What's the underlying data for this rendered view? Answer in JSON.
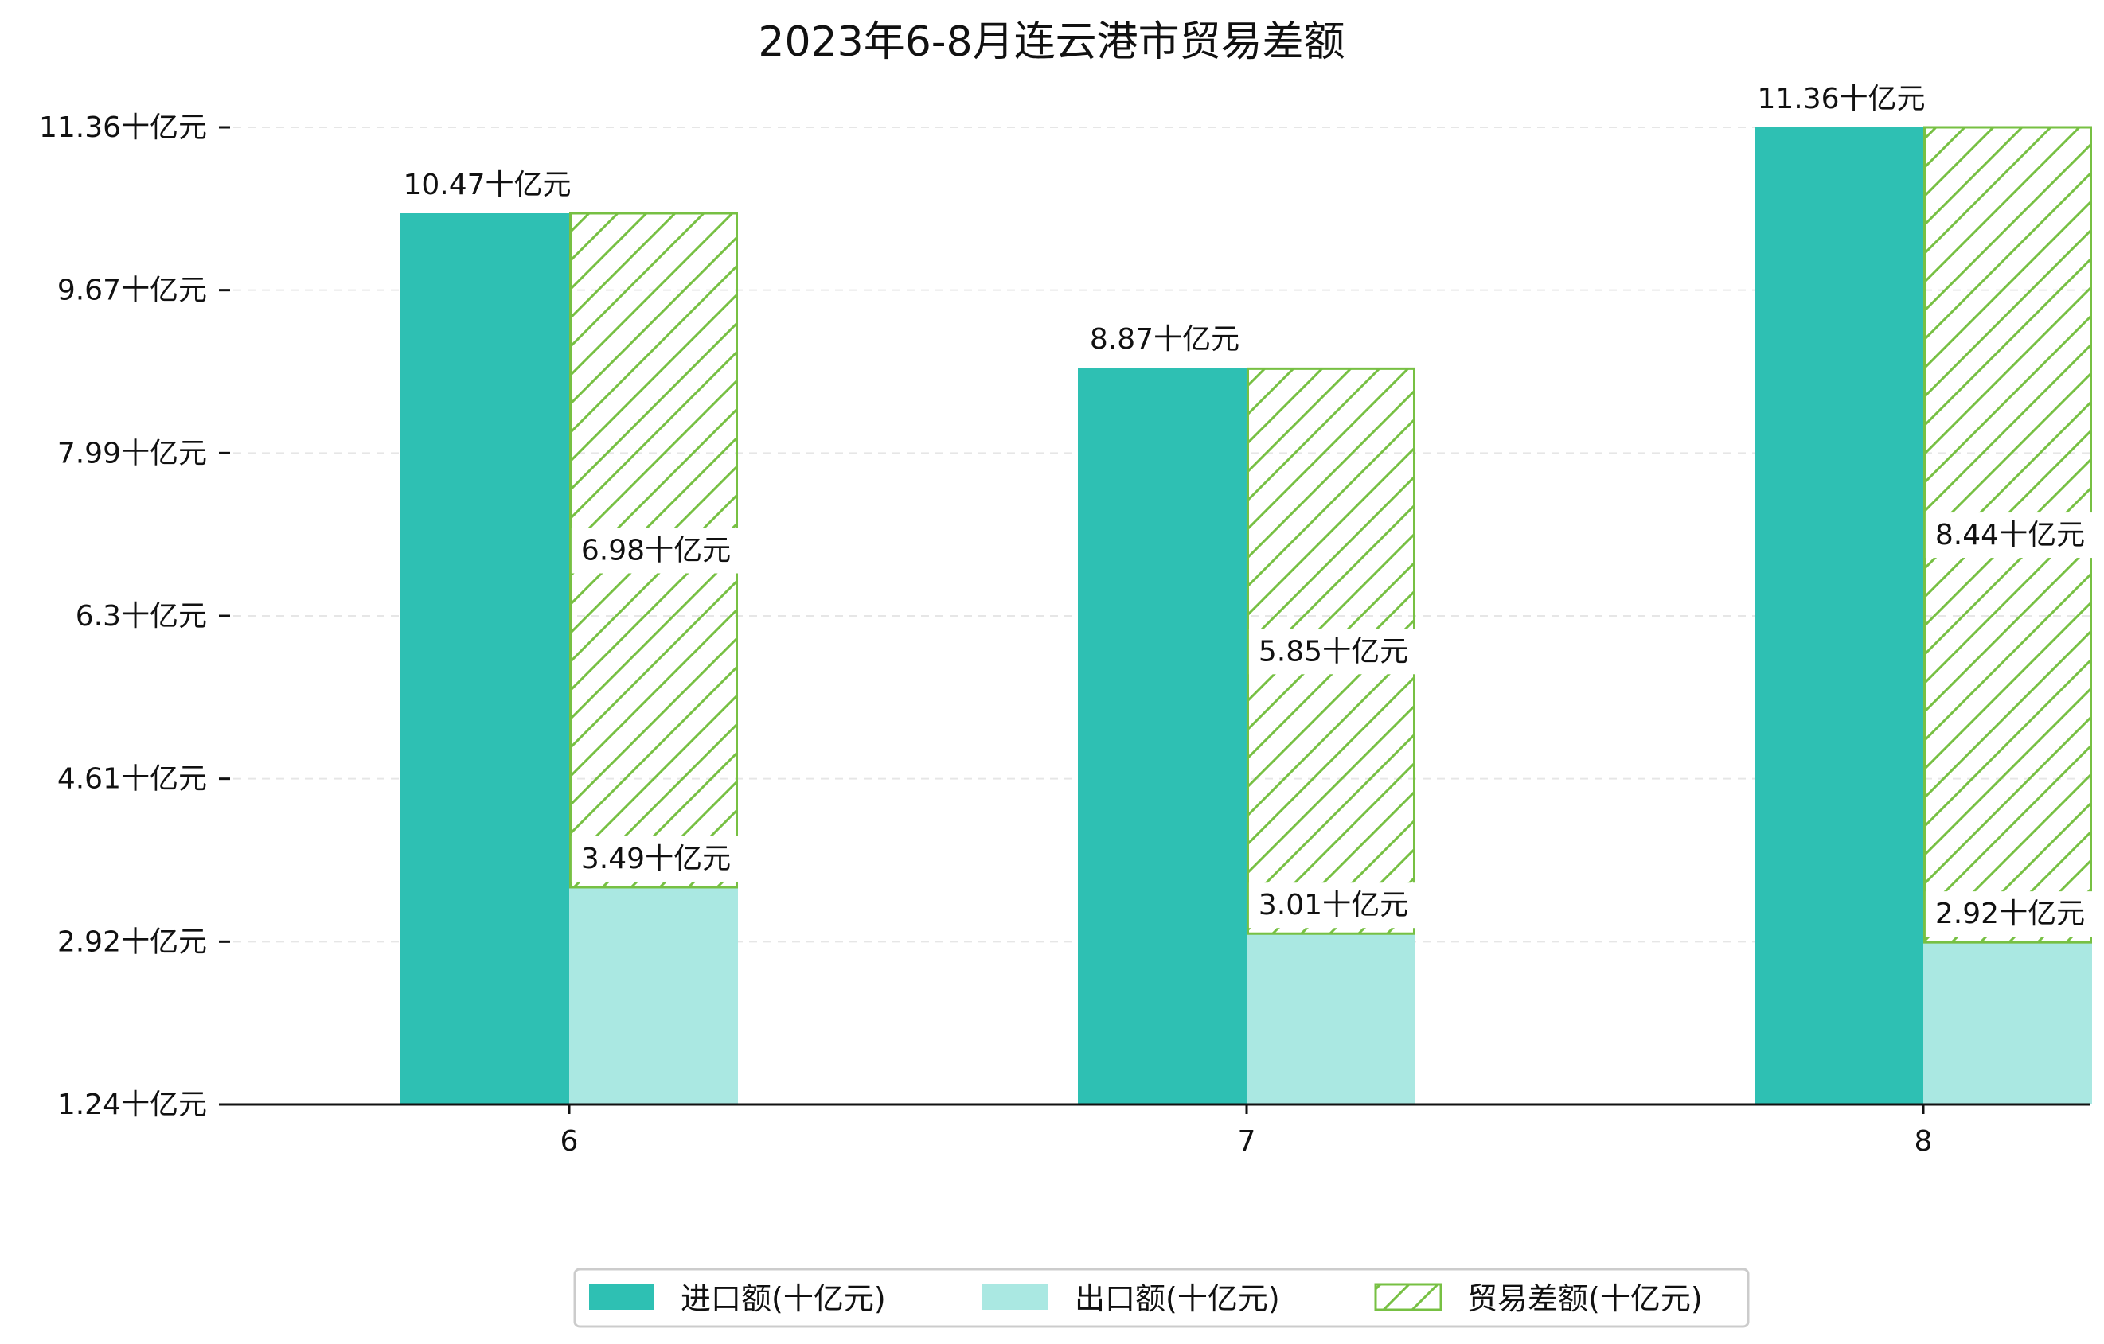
{
  "chart_data": {
    "type": "bar",
    "title": "2023年6-8月连云港市贸易差额",
    "xlabel": "",
    "ylabel": "",
    "categories": [
      "6",
      "7",
      "8"
    ],
    "yticks": [
      "1.24十亿元",
      "2.92十亿元",
      "4.61十亿元",
      "6.3十亿元",
      "7.99十亿元",
      "9.67十亿元",
      "11.36十亿元"
    ],
    "ylim": [
      1.24,
      11.36
    ],
    "grid": "horizontal-dashed",
    "legend_position": "bottom-center",
    "series": [
      {
        "name": "进口额(十亿元)",
        "values": [
          10.47,
          8.87,
          11.36
        ],
        "labels": [
          "10.47十亿元",
          "8.87十亿元",
          "11.36十亿元"
        ],
        "color": "#2ec0b3",
        "style": "solid"
      },
      {
        "name": "出口额(十亿元)",
        "values": [
          3.49,
          3.01,
          2.92
        ],
        "labels": [
          "3.49十亿元",
          "3.01十亿元",
          "2.92十亿元"
        ],
        "color": "#aae8e2",
        "style": "solid"
      },
      {
        "name": "贸易差额(十亿元)",
        "values": [
          6.98,
          5.85,
          8.44
        ],
        "labels": [
          "6.98十亿元",
          "5.85十亿元",
          "8.44十亿元"
        ],
        "color": "#77c043",
        "style": "hatch",
        "stacked_on": "出口额(十亿元)"
      }
    ]
  }
}
